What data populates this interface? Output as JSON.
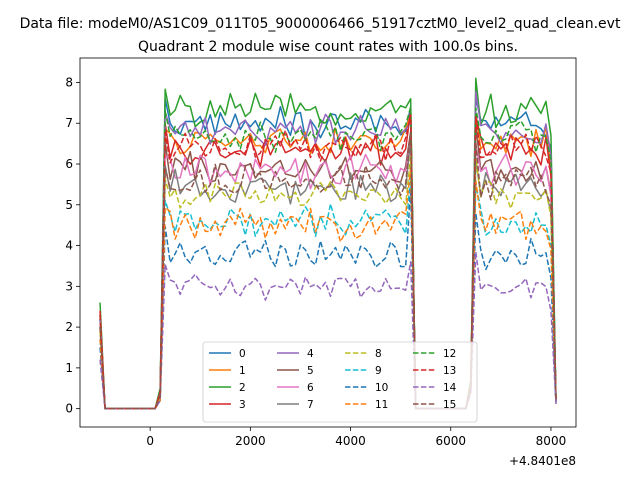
{
  "chart_data": {
    "type": "line",
    "suptitle": "Data file: modeM0/AS1C09_011T05_9000006466_51917cztM0_level2_quad_clean.evt",
    "title": "Quadrant 2 module wise count rates with 100.0s bins.",
    "xlabel": "",
    "ylabel": "",
    "x_offset_label": "+4.8401e8",
    "xlim": [
      -1400,
      8500
    ],
    "ylim": [
      -0.45,
      8.6
    ],
    "xticks": [
      0,
      2000,
      4000,
      6000,
      8000
    ],
    "yticks": [
      0,
      1,
      2,
      3,
      4,
      5,
      6,
      7,
      8
    ],
    "grid": false,
    "legend_position": "lower-center",
    "legend_columns": 4,
    "segments": [
      {
        "kind": "data",
        "x_start": 300,
        "x_end": 5100,
        "step": 100
      },
      {
        "kind": "data",
        "x_start": 6500,
        "x_end": 7900,
        "step": 100
      }
    ],
    "series": [
      {
        "name": "0",
        "color": "#1f77b4",
        "dashed": false,
        "level": 7.0,
        "start": 2.2,
        "edge_start": 0.3,
        "edge_end": 7.4,
        "end": 0.15,
        "noise": 0.3
      },
      {
        "name": "1",
        "color": "#ff7f0e",
        "dashed": false,
        "level": 6.5,
        "start": 2.3,
        "edge_start": 0.4,
        "edge_end": 7.2,
        "end": 0.2,
        "noise": 0.3
      },
      {
        "name": "2",
        "color": "#2ca02c",
        "dashed": false,
        "level": 7.3,
        "start": 2.6,
        "edge_start": 0.5,
        "edge_end": 7.6,
        "end": 0.25,
        "noise": 0.3
      },
      {
        "name": "3",
        "color": "#d62728",
        "dashed": false,
        "level": 6.3,
        "start": 2.4,
        "edge_start": 0.4,
        "edge_end": 7.3,
        "end": 0.2,
        "noise": 0.3
      },
      {
        "name": "4",
        "color": "#9467bd",
        "dashed": false,
        "level": 6.8,
        "start": 2.2,
        "edge_start": 0.3,
        "edge_end": 7.0,
        "end": 0.2,
        "noise": 0.3
      },
      {
        "name": "5",
        "color": "#8c564b",
        "dashed": false,
        "level": 5.9,
        "start": 2.0,
        "edge_start": 0.3,
        "edge_end": 6.8,
        "end": 0.2,
        "noise": 0.35
      },
      {
        "name": "6",
        "color": "#e377c2",
        "dashed": false,
        "level": 5.8,
        "start": 2.1,
        "edge_start": 0.3,
        "edge_end": 6.6,
        "end": 0.2,
        "noise": 0.35
      },
      {
        "name": "7",
        "color": "#7f7f7f",
        "dashed": false,
        "level": 5.4,
        "start": 2.0,
        "edge_start": 0.3,
        "edge_end": 6.6,
        "end": 0.2,
        "noise": 0.35
      },
      {
        "name": "8",
        "color": "#bcbd22",
        "dashed": true,
        "level": 5.3,
        "start": 1.9,
        "edge_start": 0.3,
        "edge_end": 6.2,
        "end": 0.2,
        "noise": 0.3
      },
      {
        "name": "9",
        "color": "#17becf",
        "dashed": true,
        "level": 4.6,
        "start": 1.7,
        "edge_start": 0.2,
        "edge_end": 5.7,
        "end": 0.15,
        "noise": 0.3
      },
      {
        "name": "10",
        "color": "#1f77b4",
        "dashed": true,
        "level": 3.8,
        "start": 1.5,
        "edge_start": 0.2,
        "edge_end": 5.4,
        "end": 0.15,
        "noise": 0.3
      },
      {
        "name": "11",
        "color": "#ff7f0e",
        "dashed": true,
        "level": 4.5,
        "start": 1.7,
        "edge_start": 0.2,
        "edge_end": 5.9,
        "end": 0.15,
        "noise": 0.3
      },
      {
        "name": "12",
        "color": "#2ca02c",
        "dashed": true,
        "level": 6.7,
        "start": 2.3,
        "edge_start": 0.4,
        "edge_end": 7.4,
        "end": 0.2,
        "noise": 0.3
      },
      {
        "name": "13",
        "color": "#d62728",
        "dashed": true,
        "level": 6.4,
        "start": 2.3,
        "edge_start": 0.4,
        "edge_end": 7.2,
        "end": 0.2,
        "noise": 0.3
      },
      {
        "name": "14",
        "color": "#9467bd",
        "dashed": true,
        "level": 3.0,
        "start": 1.2,
        "edge_start": 0.2,
        "edge_end": 3.6,
        "end": 0.1,
        "noise": 0.2
      },
      {
        "name": "15",
        "color": "#8c564b",
        "dashed": true,
        "level": 5.6,
        "start": 2.0,
        "edge_start": 0.3,
        "edge_end": 6.8,
        "end": 0.2,
        "noise": 0.35
      }
    ]
  }
}
